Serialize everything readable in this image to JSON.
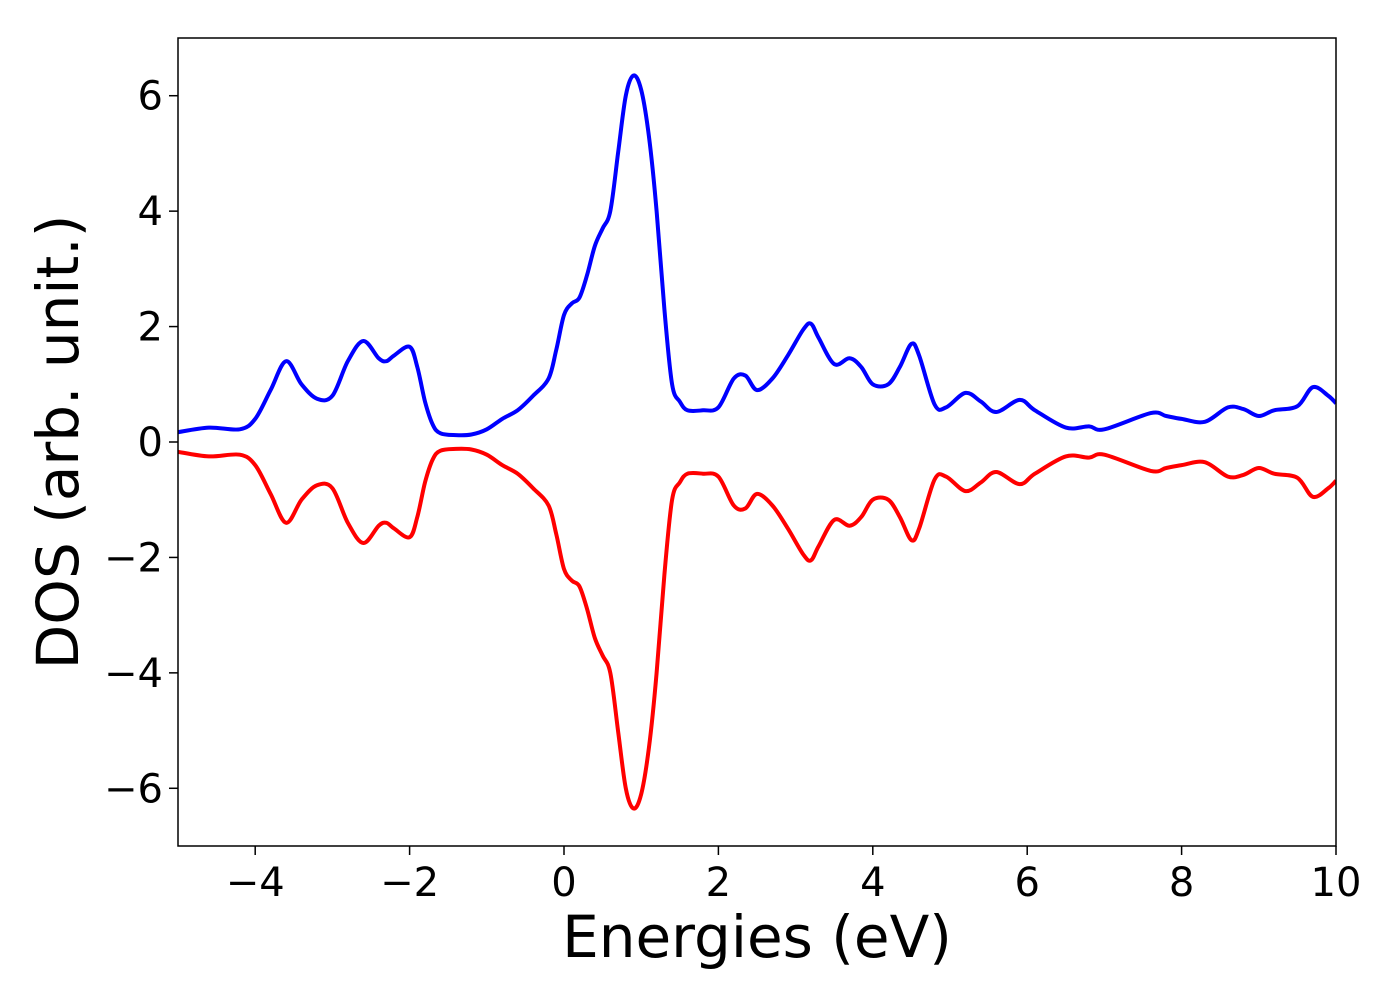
{
  "chart_data": {
    "type": "line",
    "title": "",
    "xlabel": "Energies (eV)",
    "ylabel": "DOS (arb. unit.)",
    "xlim": [
      -5,
      10
    ],
    "ylim": [
      -7,
      7
    ],
    "grid": false,
    "x_ticks": [
      -4,
      -2,
      0,
      2,
      4,
      6,
      8,
      10
    ],
    "x_tick_labels": [
      "−4",
      "−2",
      "0",
      "2",
      "4",
      "6",
      "8",
      "10"
    ],
    "y_ticks": [
      -6,
      -4,
      -2,
      0,
      2,
      4,
      6
    ],
    "y_tick_labels": [
      "−6",
      "−4",
      "−2",
      "0",
      "2",
      "4",
      "6"
    ],
    "series": [
      {
        "color": "#0000ff",
        "x": [
          -5.0,
          -4.6,
          -4.2,
          -4.0,
          -3.8,
          -3.6,
          -3.4,
          -3.2,
          -3.0,
          -2.8,
          -2.6,
          -2.4,
          -2.3,
          -2.2,
          -2.0,
          -1.9,
          -1.8,
          -1.7,
          -1.6,
          -1.4,
          -1.2,
          -1.0,
          -0.8,
          -0.6,
          -0.4,
          -0.2,
          -0.1,
          0.0,
          0.1,
          0.2,
          0.3,
          0.4,
          0.5,
          0.6,
          0.7,
          0.8,
          0.9,
          1.0,
          1.1,
          1.2,
          1.3,
          1.4,
          1.5,
          1.6,
          1.8,
          2.0,
          2.2,
          2.35,
          2.5,
          2.7,
          2.9,
          3.1,
          3.2,
          3.3,
          3.5,
          3.7,
          3.85,
          4.0,
          4.2,
          4.35,
          4.5,
          4.6,
          4.8,
          4.95,
          5.2,
          5.4,
          5.6,
          5.9,
          6.1,
          6.5,
          6.8,
          7.0,
          7.6,
          7.8,
          8.0,
          8.3,
          8.6,
          8.8,
          9.0,
          9.2,
          9.5,
          9.7,
          9.9,
          10.0
        ],
        "y": [
          0.17,
          0.25,
          0.22,
          0.4,
          0.9,
          1.4,
          1.0,
          0.75,
          0.8,
          1.4,
          1.75,
          1.45,
          1.4,
          1.5,
          1.65,
          1.3,
          0.7,
          0.3,
          0.15,
          0.12,
          0.13,
          0.22,
          0.4,
          0.55,
          0.8,
          1.1,
          1.6,
          2.2,
          2.4,
          2.5,
          2.9,
          3.4,
          3.7,
          4.0,
          5.0,
          6.0,
          6.35,
          6.1,
          5.3,
          4.0,
          2.3,
          1.0,
          0.7,
          0.55,
          0.55,
          0.6,
          1.1,
          1.15,
          0.9,
          1.1,
          1.5,
          1.95,
          2.05,
          1.8,
          1.35,
          1.45,
          1.3,
          1.0,
          1.0,
          1.3,
          1.7,
          1.5,
          0.65,
          0.6,
          0.85,
          0.7,
          0.52,
          0.73,
          0.55,
          0.25,
          0.27,
          0.22,
          0.5,
          0.45,
          0.4,
          0.35,
          0.6,
          0.57,
          0.45,
          0.55,
          0.62,
          0.95,
          0.8,
          0.67
        ]
      },
      {
        "color": "#ff0000",
        "x": [
          -5.0,
          -4.6,
          -4.2,
          -4.0,
          -3.8,
          -3.6,
          -3.4,
          -3.2,
          -3.0,
          -2.8,
          -2.6,
          -2.4,
          -2.3,
          -2.2,
          -2.0,
          -1.9,
          -1.8,
          -1.7,
          -1.6,
          -1.4,
          -1.2,
          -1.0,
          -0.8,
          -0.6,
          -0.4,
          -0.2,
          -0.1,
          0.0,
          0.1,
          0.2,
          0.3,
          0.4,
          0.5,
          0.6,
          0.7,
          0.8,
          0.9,
          1.0,
          1.1,
          1.2,
          1.3,
          1.4,
          1.5,
          1.6,
          1.8,
          2.0,
          2.2,
          2.35,
          2.5,
          2.7,
          2.9,
          3.1,
          3.2,
          3.3,
          3.5,
          3.7,
          3.85,
          4.0,
          4.2,
          4.35,
          4.5,
          4.6,
          4.8,
          4.95,
          5.2,
          5.4,
          5.6,
          5.9,
          6.1,
          6.5,
          6.8,
          7.0,
          7.6,
          7.8,
          8.0,
          8.3,
          8.6,
          8.8,
          9.0,
          9.2,
          9.5,
          9.7,
          9.9,
          10.0
        ],
        "y": [
          -0.17,
          -0.25,
          -0.22,
          -0.4,
          -0.9,
          -1.4,
          -1.0,
          -0.75,
          -0.8,
          -1.4,
          -1.75,
          -1.45,
          -1.4,
          -1.5,
          -1.65,
          -1.3,
          -0.7,
          -0.3,
          -0.15,
          -0.12,
          -0.13,
          -0.22,
          -0.4,
          -0.55,
          -0.8,
          -1.1,
          -1.6,
          -2.2,
          -2.4,
          -2.5,
          -2.9,
          -3.4,
          -3.7,
          -4.0,
          -5.0,
          -6.0,
          -6.35,
          -6.1,
          -5.3,
          -4.0,
          -2.3,
          -1.0,
          -0.7,
          -0.55,
          -0.55,
          -0.6,
          -1.1,
          -1.15,
          -0.9,
          -1.1,
          -1.5,
          -1.95,
          -2.05,
          -1.8,
          -1.35,
          -1.45,
          -1.3,
          -1.0,
          -1.0,
          -1.3,
          -1.7,
          -1.5,
          -0.65,
          -0.6,
          -0.85,
          -0.7,
          -0.52,
          -0.73,
          -0.55,
          -0.25,
          -0.27,
          -0.22,
          -0.5,
          -0.45,
          -0.4,
          -0.35,
          -0.6,
          -0.57,
          -0.45,
          -0.55,
          -0.62,
          -0.95,
          -0.8,
          -0.67
        ]
      }
    ]
  }
}
